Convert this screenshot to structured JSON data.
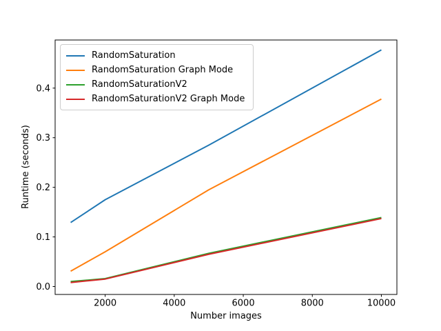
{
  "chart_data": {
    "type": "line",
    "xlabel": "Number images",
    "ylabel": "Runtime (seconds)",
    "x": [
      1000,
      2000,
      5000,
      10000
    ],
    "series": [
      {
        "name": "RandomSaturation",
        "color": "#1f77b4",
        "values": [
          0.129,
          0.175,
          0.285,
          0.477
        ]
      },
      {
        "name": "RandomSaturation Graph Mode",
        "color": "#ff7f0e",
        "values": [
          0.031,
          0.07,
          0.195,
          0.378
        ]
      },
      {
        "name": "RandomSaturationV2",
        "color": "#2ca02c",
        "values": [
          0.01,
          0.016,
          0.067,
          0.139
        ]
      },
      {
        "name": "RandomSaturationV2 Graph Mode",
        "color": "#d62728",
        "values": [
          0.008,
          0.015,
          0.065,
          0.137
        ]
      }
    ],
    "xlim": [
      550,
      10450
    ],
    "ylim": [
      -0.016,
      0.497
    ],
    "xticks": [
      2000,
      4000,
      6000,
      8000,
      10000
    ],
    "yticks": [
      0.0,
      0.1,
      0.2,
      0.3,
      0.4
    ],
    "legend_position": "upper left",
    "grid": false,
    "axes_frame_color": "#000000",
    "background_color": "#ffffff"
  }
}
